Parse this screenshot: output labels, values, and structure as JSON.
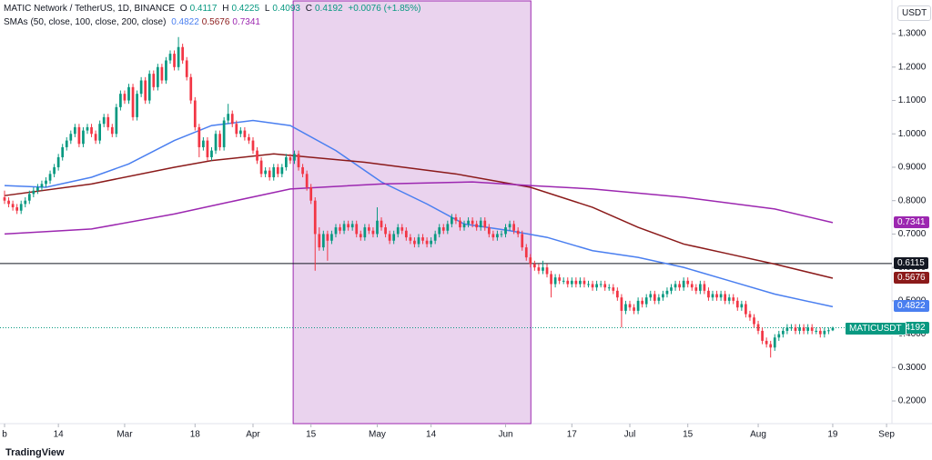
{
  "chart_data": {
    "type": "candlestick",
    "title": "MATIC Network / TetherUS, 1D, BINANCE",
    "ohlc_letters": [
      "O",
      "H",
      "L",
      "C"
    ],
    "change": "+0.0076 (+1.85%)",
    "indicator_title": "SMAs (50, close, 100, close, 200, close)",
    "symbol": "MATICUSDT",
    "currency": "USDT",
    "brand": "TradingView",
    "up_color": "#089981",
    "down_color": "#f23645",
    "candles": [
      [
        0.81,
        0.83,
        0.79,
        0.8
      ],
      [
        0.8,
        0.81,
        0.78,
        0.79
      ],
      [
        0.79,
        0.8,
        0.77,
        0.78
      ],
      [
        0.78,
        0.79,
        0.76,
        0.77
      ],
      [
        0.77,
        0.8,
        0.76,
        0.79
      ],
      [
        0.79,
        0.81,
        0.78,
        0.8
      ],
      [
        0.8,
        0.83,
        0.79,
        0.82
      ],
      [
        0.82,
        0.84,
        0.81,
        0.83
      ],
      [
        0.83,
        0.85,
        0.82,
        0.84
      ],
      [
        0.84,
        0.86,
        0.83,
        0.85
      ],
      [
        0.85,
        0.87,
        0.84,
        0.86
      ],
      [
        0.86,
        0.89,
        0.85,
        0.88
      ],
      [
        0.88,
        0.91,
        0.87,
        0.9
      ],
      [
        0.9,
        0.94,
        0.89,
        0.93
      ],
      [
        0.93,
        0.97,
        0.92,
        0.96
      ],
      [
        0.96,
        0.99,
        0.95,
        0.98
      ],
      [
        0.98,
        1.01,
        0.97,
        1.0
      ],
      [
        1.0,
        1.03,
        0.99,
        1.02
      ],
      [
        1.02,
        1.03,
        0.96,
        0.97
      ],
      [
        0.97,
        1.02,
        0.96,
        1.01
      ],
      [
        1.01,
        1.03,
        1.0,
        1.02
      ],
      [
        1.02,
        1.03,
        0.99,
        1.0
      ],
      [
        1.0,
        1.01,
        0.97,
        0.98
      ],
      [
        0.98,
        1.04,
        0.97,
        1.03
      ],
      [
        1.03,
        1.06,
        1.02,
        1.05
      ],
      [
        1.05,
        1.06,
        1.01,
        1.02
      ],
      [
        1.02,
        1.03,
        0.99,
        1.0
      ],
      [
        1.0,
        1.09,
        0.99,
        1.08
      ],
      [
        1.08,
        1.13,
        1.07,
        1.12
      ],
      [
        1.12,
        1.13,
        1.09,
        1.1
      ],
      [
        1.1,
        1.15,
        1.09,
        1.14
      ],
      [
        1.14,
        1.15,
        1.04,
        1.05
      ],
      [
        1.05,
        1.13,
        1.04,
        1.12
      ],
      [
        1.12,
        1.17,
        1.11,
        1.16
      ],
      [
        1.16,
        1.17,
        1.09,
        1.1
      ],
      [
        1.1,
        1.19,
        1.09,
        1.18
      ],
      [
        1.18,
        1.19,
        1.13,
        1.14
      ],
      [
        1.14,
        1.21,
        1.13,
        1.2
      ],
      [
        1.2,
        1.21,
        1.15,
        1.16
      ],
      [
        1.16,
        1.23,
        1.15,
        1.22
      ],
      [
        1.22,
        1.25,
        1.21,
        1.24
      ],
      [
        1.24,
        1.25,
        1.19,
        1.2
      ],
      [
        1.2,
        1.29,
        1.19,
        1.26
      ],
      [
        1.26,
        1.27,
        1.21,
        1.22
      ],
      [
        1.22,
        1.23,
        1.16,
        1.17
      ],
      [
        1.17,
        1.18,
        1.09,
        1.1
      ],
      [
        1.1,
        1.11,
        1.01,
        1.02
      ],
      [
        1.02,
        1.03,
        0.93,
        0.96
      ],
      [
        0.96,
        0.99,
        0.95,
        0.98
      ],
      [
        0.98,
        0.99,
        0.92,
        0.93
      ],
      [
        0.93,
        0.96,
        0.92,
        0.95
      ],
      [
        0.95,
        1.01,
        0.94,
        1.0
      ],
      [
        1.0,
        1.01,
        0.95,
        0.96
      ],
      [
        0.96,
        1.05,
        0.95,
        1.04
      ],
      [
        1.04,
        1.09,
        1.03,
        1.06
      ],
      [
        1.06,
        1.07,
        1.02,
        1.03
      ],
      [
        1.03,
        1.04,
        0.99,
        1.0
      ],
      [
        1.0,
        1.02,
        0.99,
        1.01
      ],
      [
        1.01,
        1.02,
        0.98,
        0.99
      ],
      [
        0.99,
        1.0,
        0.97,
        0.98
      ],
      [
        0.98,
        0.99,
        0.94,
        0.95
      ],
      [
        0.95,
        0.96,
        0.91,
        0.92
      ],
      [
        0.92,
        0.93,
        0.87,
        0.88
      ],
      [
        0.88,
        0.9,
        0.87,
        0.89
      ],
      [
        0.89,
        0.9,
        0.86,
        0.87
      ],
      [
        0.87,
        0.91,
        0.86,
        0.9
      ],
      [
        0.9,
        0.91,
        0.87,
        0.88
      ],
      [
        0.88,
        0.91,
        0.87,
        0.9
      ],
      [
        0.9,
        0.94,
        0.89,
        0.93
      ],
      [
        0.93,
        0.94,
        0.91,
        0.92
      ],
      [
        0.92,
        0.95,
        0.91,
        0.94
      ],
      [
        0.94,
        0.95,
        0.89,
        0.9
      ],
      [
        0.9,
        0.91,
        0.87,
        0.88
      ],
      [
        0.88,
        0.89,
        0.83,
        0.84
      ],
      [
        0.84,
        0.85,
        0.79,
        0.8
      ],
      [
        0.8,
        0.81,
        0.59,
        0.7
      ],
      [
        0.7,
        0.72,
        0.65,
        0.66
      ],
      [
        0.66,
        0.71,
        0.65,
        0.7
      ],
      [
        0.7,
        0.71,
        0.62,
        0.68
      ],
      [
        0.68,
        0.71,
        0.67,
        0.7
      ],
      [
        0.7,
        0.73,
        0.69,
        0.72
      ],
      [
        0.72,
        0.73,
        0.7,
        0.71
      ],
      [
        0.71,
        0.74,
        0.7,
        0.73
      ],
      [
        0.73,
        0.74,
        0.71,
        0.72
      ],
      [
        0.72,
        0.74,
        0.71,
        0.73
      ],
      [
        0.73,
        0.74,
        0.69,
        0.7
      ],
      [
        0.7,
        0.71,
        0.68,
        0.69
      ],
      [
        0.69,
        0.73,
        0.68,
        0.72
      ],
      [
        0.72,
        0.73,
        0.7,
        0.71
      ],
      [
        0.71,
        0.72,
        0.69,
        0.7
      ],
      [
        0.7,
        0.78,
        0.69,
        0.74
      ],
      [
        0.74,
        0.75,
        0.71,
        0.72
      ],
      [
        0.72,
        0.73,
        0.69,
        0.7
      ],
      [
        0.7,
        0.71,
        0.67,
        0.68
      ],
      [
        0.68,
        0.71,
        0.67,
        0.7
      ],
      [
        0.7,
        0.73,
        0.69,
        0.72
      ],
      [
        0.72,
        0.73,
        0.7,
        0.71
      ],
      [
        0.71,
        0.72,
        0.68,
        0.69
      ],
      [
        0.69,
        0.7,
        0.67,
        0.68
      ],
      [
        0.68,
        0.69,
        0.66,
        0.67
      ],
      [
        0.67,
        0.7,
        0.66,
        0.69
      ],
      [
        0.69,
        0.7,
        0.67,
        0.68
      ],
      [
        0.68,
        0.69,
        0.66,
        0.67
      ],
      [
        0.67,
        0.69,
        0.66,
        0.68
      ],
      [
        0.68,
        0.71,
        0.67,
        0.7
      ],
      [
        0.7,
        0.73,
        0.69,
        0.72
      ],
      [
        0.72,
        0.73,
        0.7,
        0.71
      ],
      [
        0.71,
        0.74,
        0.7,
        0.73
      ],
      [
        0.73,
        0.76,
        0.72,
        0.75
      ],
      [
        0.75,
        0.76,
        0.73,
        0.74
      ],
      [
        0.74,
        0.75,
        0.71,
        0.72
      ],
      [
        0.72,
        0.74,
        0.71,
        0.73
      ],
      [
        0.73,
        0.75,
        0.72,
        0.74
      ],
      [
        0.74,
        0.75,
        0.72,
        0.73
      ],
      [
        0.73,
        0.74,
        0.71,
        0.72
      ],
      [
        0.72,
        0.75,
        0.71,
        0.74
      ],
      [
        0.74,
        0.75,
        0.71,
        0.72
      ],
      [
        0.72,
        0.73,
        0.69,
        0.7
      ],
      [
        0.7,
        0.71,
        0.68,
        0.69
      ],
      [
        0.69,
        0.71,
        0.68,
        0.7
      ],
      [
        0.7,
        0.71,
        0.69,
        0.7
      ],
      [
        0.7,
        0.73,
        0.69,
        0.72
      ],
      [
        0.72,
        0.74,
        0.71,
        0.73
      ],
      [
        0.73,
        0.74,
        0.7,
        0.71
      ],
      [
        0.71,
        0.72,
        0.69,
        0.7
      ],
      [
        0.7,
        0.71,
        0.65,
        0.66
      ],
      [
        0.66,
        0.67,
        0.62,
        0.63
      ],
      [
        0.63,
        0.64,
        0.6,
        0.61
      ],
      [
        0.61,
        0.62,
        0.59,
        0.6
      ],
      [
        0.6,
        0.61,
        0.58,
        0.59
      ],
      [
        0.59,
        0.62,
        0.58,
        0.6
      ],
      [
        0.6,
        0.61,
        0.57,
        0.58
      ],
      [
        0.58,
        0.59,
        0.51,
        0.55
      ],
      [
        0.55,
        0.58,
        0.54,
        0.57
      ],
      [
        0.57,
        0.58,
        0.55,
        0.56
      ],
      [
        0.56,
        0.57,
        0.55,
        0.56
      ],
      [
        0.56,
        0.57,
        0.54,
        0.55
      ],
      [
        0.55,
        0.57,
        0.54,
        0.56
      ],
      [
        0.56,
        0.57,
        0.54,
        0.55
      ],
      [
        0.55,
        0.57,
        0.54,
        0.56
      ],
      [
        0.56,
        0.57,
        0.54,
        0.55
      ],
      [
        0.55,
        0.56,
        0.54,
        0.55
      ],
      [
        0.55,
        0.56,
        0.53,
        0.54
      ],
      [
        0.54,
        0.56,
        0.53,
        0.55
      ],
      [
        0.55,
        0.56,
        0.54,
        0.55
      ],
      [
        0.55,
        0.56,
        0.53,
        0.54
      ],
      [
        0.54,
        0.55,
        0.53,
        0.54
      ],
      [
        0.54,
        0.55,
        0.52,
        0.53
      ],
      [
        0.53,
        0.54,
        0.5,
        0.51
      ],
      [
        0.51,
        0.52,
        0.42,
        0.47
      ],
      [
        0.47,
        0.5,
        0.46,
        0.49
      ],
      [
        0.49,
        0.5,
        0.47,
        0.48
      ],
      [
        0.48,
        0.49,
        0.46,
        0.47
      ],
      [
        0.47,
        0.51,
        0.46,
        0.5
      ],
      [
        0.5,
        0.51,
        0.48,
        0.49
      ],
      [
        0.49,
        0.52,
        0.48,
        0.51
      ],
      [
        0.51,
        0.53,
        0.5,
        0.52
      ],
      [
        0.52,
        0.53,
        0.49,
        0.5
      ],
      [
        0.5,
        0.52,
        0.49,
        0.51
      ],
      [
        0.51,
        0.53,
        0.5,
        0.52
      ],
      [
        0.52,
        0.54,
        0.51,
        0.53
      ],
      [
        0.53,
        0.55,
        0.52,
        0.54
      ],
      [
        0.54,
        0.56,
        0.53,
        0.55
      ],
      [
        0.55,
        0.56,
        0.53,
        0.54
      ],
      [
        0.54,
        0.57,
        0.53,
        0.56
      ],
      [
        0.56,
        0.57,
        0.54,
        0.55
      ],
      [
        0.55,
        0.56,
        0.53,
        0.54
      ],
      [
        0.54,
        0.55,
        0.52,
        0.53
      ],
      [
        0.53,
        0.56,
        0.52,
        0.55
      ],
      [
        0.55,
        0.56,
        0.52,
        0.53
      ],
      [
        0.53,
        0.54,
        0.5,
        0.51
      ],
      [
        0.51,
        0.53,
        0.5,
        0.52
      ],
      [
        0.52,
        0.53,
        0.5,
        0.51
      ],
      [
        0.51,
        0.53,
        0.5,
        0.52
      ],
      [
        0.52,
        0.53,
        0.49,
        0.5
      ],
      [
        0.5,
        0.52,
        0.49,
        0.51
      ],
      [
        0.51,
        0.52,
        0.49,
        0.5
      ],
      [
        0.5,
        0.51,
        0.47,
        0.48
      ],
      [
        0.48,
        0.5,
        0.47,
        0.49
      ],
      [
        0.49,
        0.5,
        0.45,
        0.46
      ],
      [
        0.46,
        0.47,
        0.44,
        0.45
      ],
      [
        0.45,
        0.46,
        0.42,
        0.43
      ],
      [
        0.43,
        0.44,
        0.4,
        0.41
      ],
      [
        0.41,
        0.42,
        0.37,
        0.38
      ],
      [
        0.38,
        0.39,
        0.36,
        0.37
      ],
      [
        0.37,
        0.38,
        0.33,
        0.36
      ],
      [
        0.36,
        0.4,
        0.35,
        0.39
      ],
      [
        0.39,
        0.41,
        0.38,
        0.4
      ],
      [
        0.4,
        0.42,
        0.39,
        0.41
      ],
      [
        0.41,
        0.43,
        0.4,
        0.42
      ],
      [
        0.42,
        0.43,
        0.41,
        0.42
      ],
      [
        0.42,
        0.43,
        0.4,
        0.41
      ],
      [
        0.41,
        0.43,
        0.4,
        0.42
      ],
      [
        0.42,
        0.43,
        0.4,
        0.41
      ],
      [
        0.41,
        0.43,
        0.4,
        0.42
      ],
      [
        0.42,
        0.43,
        0.4,
        0.41
      ],
      [
        0.41,
        0.42,
        0.4,
        0.41
      ],
      [
        0.41,
        0.42,
        0.39,
        0.4
      ],
      [
        0.4,
        0.42,
        0.39,
        0.41
      ],
      [
        0.41,
        0.42,
        0.4,
        0.4117
      ],
      [
        0.4117,
        0.4225,
        0.4093,
        0.4192
      ]
    ],
    "series": [
      {
        "color": "#4a7ff0",
        "x": [
          0,
          10,
          21,
          30,
          41,
          50,
          60,
          69,
          80,
          91,
          102,
          111,
          122,
          131,
          142,
          153,
          164,
          175,
          186,
          200
        ],
        "values": [
          0.845,
          0.84,
          0.87,
          0.91,
          0.98,
          1.025,
          1.04,
          1.025,
          0.95,
          0.856,
          0.79,
          0.73,
          0.71,
          0.69,
          0.65,
          0.63,
          0.6,
          0.56,
          0.52,
          0.4822
        ]
      },
      {
        "color": "#8b1a1a",
        "x": [
          0,
          21,
          41,
          50,
          65,
          87,
          109,
          127,
          142,
          153,
          164,
          175,
          186,
          200
        ],
        "values": [
          0.815,
          0.85,
          0.9,
          0.92,
          0.94,
          0.915,
          0.88,
          0.84,
          0.78,
          0.72,
          0.67,
          0.64,
          0.61,
          0.5676
        ]
      },
      {
        "color": "#9c27b0",
        "x": [
          0,
          21,
          41,
          54,
          69,
          91,
          113,
          127,
          142,
          164,
          186,
          200
        ],
        "values": [
          0.7,
          0.715,
          0.76,
          0.795,
          0.835,
          0.85,
          0.856,
          0.845,
          0.835,
          0.81,
          0.775,
          0.7341
        ]
      }
    ],
    "hline": {
      "value": 0.6115,
      "color": "#131722"
    },
    "highlight": {
      "x": [
        69.7,
        127.1
      ],
      "color": "#ead3ee",
      "border": "#9c27b0"
    },
    "xlim": [
      -1.1,
      214.3
    ],
    "ylim": [
      0.132,
      1.401
    ],
    "xticks": [
      {
        "value": 0,
        "label": "b"
      },
      {
        "value": 13,
        "label": "14"
      },
      {
        "value": 29,
        "label": "Mar"
      },
      {
        "value": 46,
        "label": "18"
      },
      {
        "value": 60,
        "label": "Apr"
      },
      {
        "value": 74,
        "label": "15"
      },
      {
        "value": 90,
        "label": "May"
      },
      {
        "value": 103,
        "label": "14"
      },
      {
        "value": 121,
        "label": "Jun"
      },
      {
        "value": 137,
        "label": "17"
      },
      {
        "value": 151,
        "label": "Jul"
      },
      {
        "value": 165,
        "label": "15"
      },
      {
        "value": 182,
        "label": "Aug"
      },
      {
        "value": 200,
        "label": "19"
      },
      {
        "value": 213,
        "label": "Sep"
      }
    ],
    "yticks": [
      {
        "value": 1.3,
        "label": "1.3000"
      },
      {
        "value": 1.2,
        "label": "1.2000"
      },
      {
        "value": 1.1,
        "label": "1.1000"
      },
      {
        "value": 1.0,
        "label": "1.0000"
      },
      {
        "value": 0.9,
        "label": "0.9000"
      },
      {
        "value": 0.8,
        "label": "0.8000"
      },
      {
        "value": 0.7,
        "label": "0.7000"
      },
      {
        "value": 0.6,
        "label": "0.6000"
      },
      {
        "value": 0.5,
        "label": "0.5000"
      },
      {
        "value": 0.4,
        "label": "0.4000"
      },
      {
        "value": 0.3,
        "label": "0.3000"
      },
      {
        "value": 0.2,
        "label": "0.2000"
      }
    ]
  }
}
